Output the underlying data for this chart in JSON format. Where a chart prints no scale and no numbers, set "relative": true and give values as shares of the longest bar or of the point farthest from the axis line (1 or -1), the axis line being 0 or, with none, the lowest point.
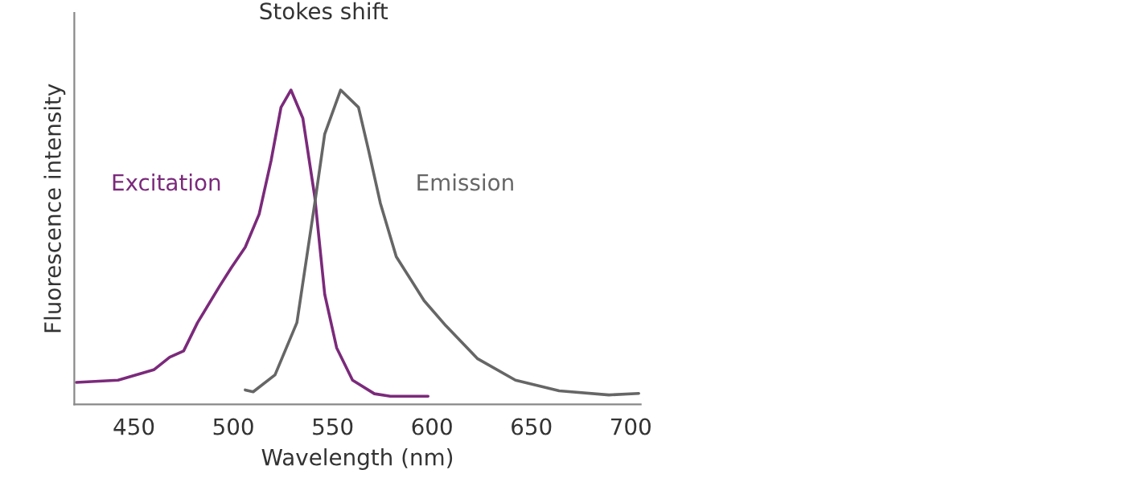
{
  "chart_data": {
    "type": "line",
    "title": "Stokes shift",
    "xlabel": "Wavelength (nm)",
    "ylabel": "Fluorescence intensity",
    "relative": true,
    "xlim": [
      420,
      705
    ],
    "xticks": [
      450,
      500,
      550,
      600,
      650,
      700
    ],
    "grid": false,
    "legend": false,
    "series": [
      {
        "name": "Excitation",
        "color": "#7b2a7b",
        "x": [
          421,
          442,
          460,
          468,
          475,
          482,
          493,
          499,
          506,
          513,
          519,
          524,
          529,
          535,
          541,
          546,
          552,
          560,
          571,
          579,
          598
        ],
        "values": [
          0.07,
          0.077,
          0.11,
          0.15,
          0.17,
          0.26,
          0.375,
          0.435,
          0.5,
          0.605,
          0.775,
          0.945,
          1.0,
          0.91,
          0.66,
          0.35,
          0.18,
          0.077,
          0.034,
          0.026,
          0.026
        ]
      },
      {
        "name": "Emission",
        "color": "#666666",
        "x": [
          506,
          510,
          521,
          532,
          541,
          546,
          554,
          563,
          568,
          574,
          582,
          596,
          607,
          623,
          642,
          664,
          689,
          704
        ],
        "values": [
          0.046,
          0.04,
          0.094,
          0.26,
          0.64,
          0.86,
          1.0,
          0.945,
          0.81,
          0.64,
          0.47,
          0.33,
          0.25,
          0.145,
          0.077,
          0.043,
          0.03,
          0.035
        ]
      }
    ]
  }
}
